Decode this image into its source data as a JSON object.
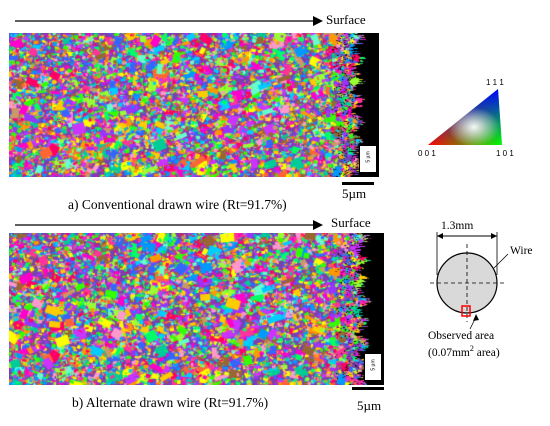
{
  "panel_a": {
    "direction_label": "Surface",
    "caption": "a)   Conventional drawn wire (Rt=91.7%)",
    "scale_label": "5µm",
    "inner_scale_label": "5 µm"
  },
  "panel_b": {
    "direction_label": "Surface",
    "caption": "b)  Alternate drawn wire (Rt=91.7%)",
    "scale_label": "5µm",
    "inner_scale_label": "5 µm"
  },
  "ipf_legend": {
    "top": "1 1 1",
    "bottom_left": "0 0 1",
    "bottom_right": "1 0 1"
  },
  "wire_diagram": {
    "diameter_label": "1.3mm",
    "wire_label": "Wire",
    "observed_area_line1": "Observed area",
    "observed_area_line2_prefix": "(0.07mm",
    "observed_area_line2_sup": "2",
    "observed_area_line2_suffix": " area)"
  },
  "colors": {
    "grain_palette": [
      "#ff00cc",
      "#ff3399",
      "#ff0066",
      "#cc33ff",
      "#9933ff",
      "#3366ff",
      "#0099ff",
      "#00ccff",
      "#00ff66",
      "#33ff00",
      "#99ff33",
      "#ffff00",
      "#ffcc00",
      "#ff9900",
      "#ff6633",
      "#cc9966",
      "#996633",
      "#ff99cc",
      "#66ffcc",
      "#00cc99"
    ],
    "background_dark": "#000000",
    "wire_fill": "#d9d9d9",
    "observed_box": "#ff0000"
  }
}
